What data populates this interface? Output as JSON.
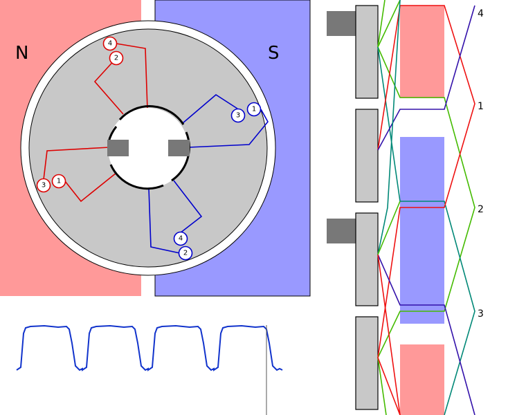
{
  "poles": {
    "north_label": "N",
    "south_label": "S"
  },
  "colors": {
    "north": "#ff9999",
    "south": "#9999ff",
    "rotor": "#c8c8c8",
    "brush": "#787878",
    "coil_a": "#dd0000",
    "coil_b": "#0000cc",
    "wire_green": "#44bb00",
    "wire_teal": "#008877",
    "wire_red": "#ee1111",
    "wire_violet": "#3311aa",
    "trace": "#1133cc"
  },
  "rotor_coils": {
    "north_side": [
      {
        "name": "coil-tag-top",
        "numbers": [
          "4",
          "2"
        ]
      },
      {
        "name": "coil-tag-left",
        "numbers": [
          "3",
          "1"
        ]
      }
    ],
    "south_side": [
      {
        "name": "coil-tag-right",
        "numbers": [
          "3",
          "1"
        ]
      },
      {
        "name": "coil-tag-bottom",
        "numbers": [
          "4",
          "2"
        ]
      }
    ]
  },
  "unrolled_segments": [
    "4",
    "1",
    "2",
    "3"
  ]
}
